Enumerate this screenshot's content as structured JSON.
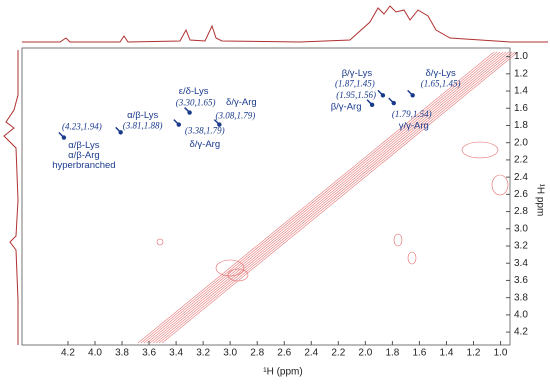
{
  "chart_data": {
    "type": "contour",
    "x_label": "¹H (ppm)",
    "y_label": "¹H ppm",
    "xlim": [
      4.54,
      0.93
    ],
    "ylim": [
      0.9,
      4.35
    ],
    "xticks": [
      {
        "value": 4.2,
        "label": "4.2"
      },
      {
        "value": 4.0,
        "label": "4.0"
      },
      {
        "value": 3.8,
        "label": "3.8"
      },
      {
        "value": 3.6,
        "label": "3.6"
      },
      {
        "value": 3.4,
        "label": "3.4"
      },
      {
        "value": 3.2,
        "label": "3.2"
      },
      {
        "value": 3.0,
        "label": "3.0"
      },
      {
        "value": 2.8,
        "label": "2.8"
      },
      {
        "value": 2.6,
        "label": "2.6"
      },
      {
        "value": 2.4,
        "label": "2.4"
      },
      {
        "value": 2.2,
        "label": "2.2"
      },
      {
        "value": 2.0,
        "label": "2.0"
      },
      {
        "value": 1.8,
        "label": "1.8"
      },
      {
        "value": 1.6,
        "label": "1.6"
      },
      {
        "value": 1.4,
        "label": "1.4"
      },
      {
        "value": 1.2,
        "label": "1.2"
      },
      {
        "value": 1.0,
        "label": "1.0"
      }
    ],
    "yticks": [
      {
        "value": 1.0,
        "label": "1.0"
      },
      {
        "value": 1.2,
        "label": "1.2"
      },
      {
        "value": 1.4,
        "label": "1.4"
      },
      {
        "value": 1.6,
        "label": "1.6"
      },
      {
        "value": 1.8,
        "label": "1.8"
      },
      {
        "value": 2.0,
        "label": "2.0"
      },
      {
        "value": 2.2,
        "label": "2.2"
      },
      {
        "value": 2.4,
        "label": "2.4"
      },
      {
        "value": 2.6,
        "label": "2.6"
      },
      {
        "value": 2.8,
        "label": "2.8"
      },
      {
        "value": 3.0,
        "label": "3.0"
      },
      {
        "value": 3.2,
        "label": "3.2"
      },
      {
        "value": 3.4,
        "label": "3.4"
      },
      {
        "value": 3.6,
        "label": "3.6"
      },
      {
        "value": 3.8,
        "label": "3.8"
      },
      {
        "value": 4.0,
        "label": "4.0"
      },
      {
        "value": 4.2,
        "label": "4.2"
      }
    ],
    "contour_color": "#e06666",
    "marker_color": "#1a3a8c",
    "annotations": [
      {
        "x": 4.23,
        "y": 1.94,
        "value_label": "(4.23,1.94)",
        "names": [
          "α/β-Lys",
          "α/β-Arg",
          "hyperbranched"
        ]
      },
      {
        "x": 3.81,
        "y": 1.88,
        "value_label": "(3.81,1.88)",
        "names": [
          "α/β-Lys"
        ]
      },
      {
        "x": 3.3,
        "y": 1.65,
        "value_label": "(3.30,1.65)",
        "names": [
          "ε/δ-Lys"
        ]
      },
      {
        "x": 3.38,
        "y": 1.79,
        "value_label": "(3.38,1.79)",
        "names": [
          "δ/γ-Arg"
        ]
      },
      {
        "x": 3.08,
        "y": 1.79,
        "value_label": "(3.08,1.79)",
        "names": [
          "δ/γ-Arg"
        ]
      },
      {
        "x": 1.87,
        "y": 1.45,
        "value_label": "(1.87,1.45)",
        "names": [
          "β/γ-Lys"
        ]
      },
      {
        "x": 1.95,
        "y": 1.56,
        "value_label": "(1.95,1.56)",
        "names": [
          "β/γ-Arg"
        ]
      },
      {
        "x": 1.65,
        "y": 1.45,
        "value_label": "(1.65,1.45)",
        "names": [
          "δ/γ-Lys"
        ]
      },
      {
        "x": 1.79,
        "y": 1.54,
        "value_label": "(1.79,1.54)",
        "names": [
          "γ/γ-Arg"
        ]
      }
    ]
  }
}
